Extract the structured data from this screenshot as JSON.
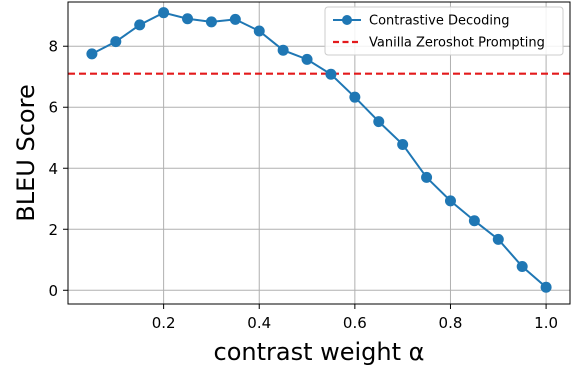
{
  "chart_data": {
    "type": "line",
    "xlabel": "contrast weight α",
    "ylabel": "BLEU Score",
    "xlim": [
      0.0,
      1.05
    ],
    "ylim": [
      -0.45,
      9.45
    ],
    "xticks": [
      0.2,
      0.4,
      0.6,
      0.8,
      1.0
    ],
    "xtick_labels": [
      "0.2",
      "0.4",
      "0.6",
      "0.8",
      "1.0"
    ],
    "yticks": [
      0,
      2,
      4,
      6,
      8
    ],
    "ytick_labels": [
      "0",
      "2",
      "4",
      "6",
      "8"
    ],
    "grid": true,
    "legend_placement": "top-right",
    "series": [
      {
        "name": "Contrastive Decoding",
        "color": "#1f77b4",
        "marker": "circle",
        "x": [
          0.05,
          0.1,
          0.15,
          0.2,
          0.25,
          0.3,
          0.35,
          0.4,
          0.45,
          0.5,
          0.55,
          0.6,
          0.65,
          0.7,
          0.75,
          0.8,
          0.85,
          0.9,
          0.95,
          1.0
        ],
        "y": [
          7.75,
          8.15,
          8.7,
          9.1,
          8.9,
          8.8,
          8.88,
          8.5,
          7.87,
          7.57,
          7.08,
          6.33,
          5.53,
          4.78,
          3.7,
          2.93,
          2.28,
          1.67,
          0.78,
          0.1
        ]
      }
    ],
    "reference_lines": [
      {
        "name": "Vanilla Zeroshot Prompting",
        "y": 7.1,
        "color": "#e31a1c",
        "style": "dashed"
      }
    ]
  }
}
